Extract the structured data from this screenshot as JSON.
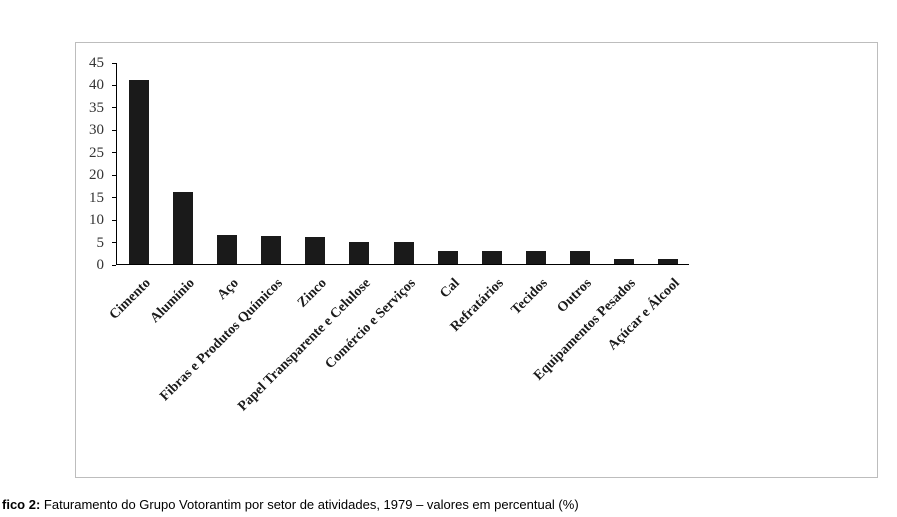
{
  "chart_data": {
    "type": "bar",
    "title": "",
    "xlabel": "",
    "ylabel": "",
    "categories": [
      "Cimento",
      "Alumínio",
      "Aço",
      "Fibras e Produtos Químicos",
      "Zinco",
      "Papel Transparente e Celulose",
      "Comércio e Serviços",
      "Cal",
      "Refratários",
      "Tecidos",
      "Outros",
      "Equipamentos Pesados",
      "Açúcar e Álcool"
    ],
    "values": [
      41,
      16,
      6.5,
      6.3,
      6,
      5,
      5,
      3,
      3,
      2.8,
      2.8,
      1.2,
      1.1
    ],
    "ylim": [
      0,
      45
    ],
    "ytick_step": 5,
    "grid": false,
    "legend_position": "none",
    "bar_color": "#1a1a1a",
    "plot_border_color": "#bdbdbd"
  },
  "caption": {
    "bold": "fico 2:",
    "rest": " Faturamento do Grupo Votorantim por setor de atividades, 1979 – valores em percentual (%)"
  }
}
